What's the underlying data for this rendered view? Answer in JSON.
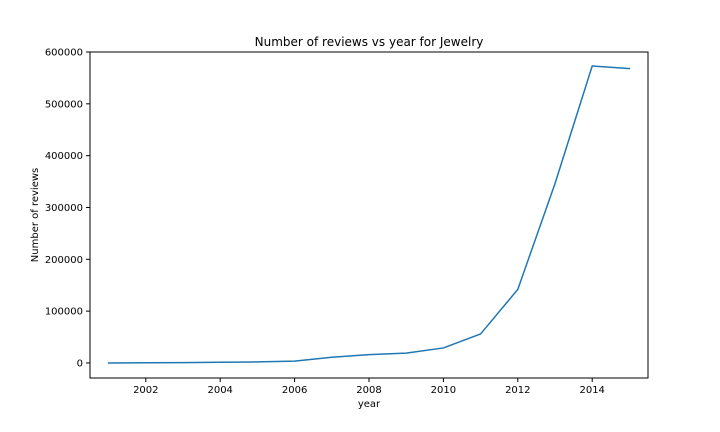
{
  "chart_data": {
    "type": "line",
    "title": "Number of reviews vs year for Jewelry",
    "xlabel": "year",
    "ylabel": "Number of reviews",
    "xlim": [
      2000.5,
      2015.5
    ],
    "ylim": [
      -29000,
      600000
    ],
    "xticks": [
      2002,
      2004,
      2006,
      2008,
      2010,
      2012,
      2014
    ],
    "xtick_labels": [
      "2002",
      "2004",
      "2006",
      "2008",
      "2010",
      "2012",
      "2014"
    ],
    "yticks": [
      0,
      100000,
      200000,
      300000,
      400000,
      500000,
      600000
    ],
    "ytick_labels": [
      "0",
      "100000",
      "200000",
      "300000",
      "400000",
      "500000",
      "600000"
    ],
    "grid": false,
    "series": [
      {
        "color": "#1f77b4",
        "x": [
          2001,
          2002,
          2003,
          2004,
          2005,
          2006,
          2007,
          2008,
          2009,
          2010,
          2011,
          2012,
          2013,
          2014,
          2015
        ],
        "y": [
          0,
          300,
          700,
          1500,
          2000,
          3500,
          11000,
          16000,
          19000,
          29000,
          56000,
          142000,
          346000,
          573000,
          568000
        ]
      }
    ]
  }
}
